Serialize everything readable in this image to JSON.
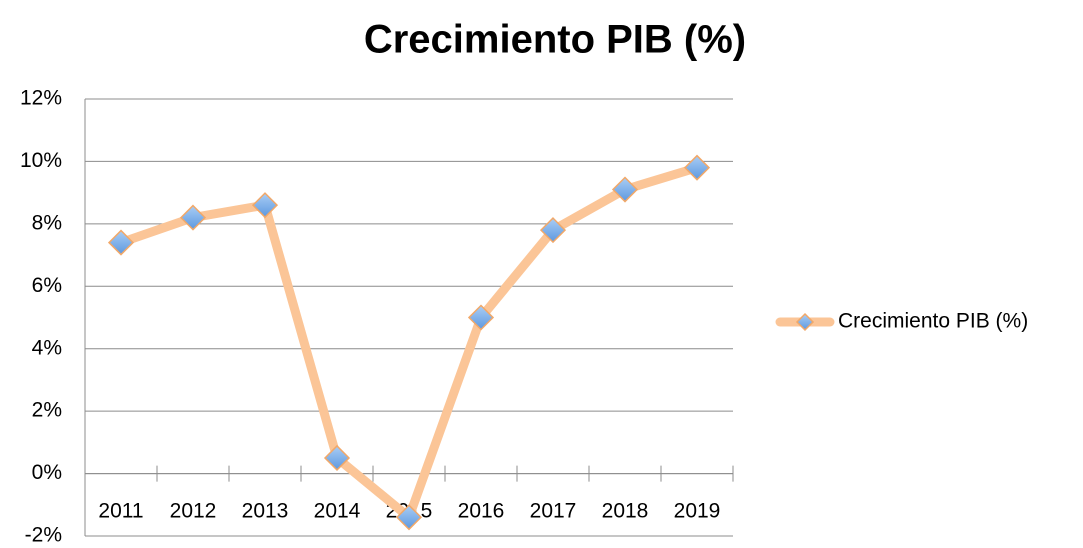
{
  "chart_data": {
    "type": "line",
    "title": "Crecimiento PIB (%)",
    "categories": [
      "2011",
      "2012",
      "2013",
      "2014",
      "2015",
      "2016",
      "2017",
      "2018",
      "2019"
    ],
    "series": [
      {
        "name": "Crecimiento PIB (%)",
        "color": "#fbc597",
        "marker_color": "#7aaee8",
        "values": [
          7.4,
          8.2,
          8.6,
          0.5,
          -1.4,
          5.0,
          7.8,
          9.1,
          9.8
        ]
      }
    ],
    "ylim": [
      -2,
      12
    ],
    "yticks": [
      {
        "value": -2,
        "label": "-2%"
      },
      {
        "value": 0,
        "label": "0%"
      },
      {
        "value": 2,
        "label": "2%"
      },
      {
        "value": 4,
        "label": "4%"
      },
      {
        "value": 6,
        "label": "6%"
      },
      {
        "value": 8,
        "label": "8%"
      },
      {
        "value": 10,
        "label": "10%"
      },
      {
        "value": 12,
        "label": "12%"
      }
    ],
    "grid": true,
    "legend": "right"
  }
}
